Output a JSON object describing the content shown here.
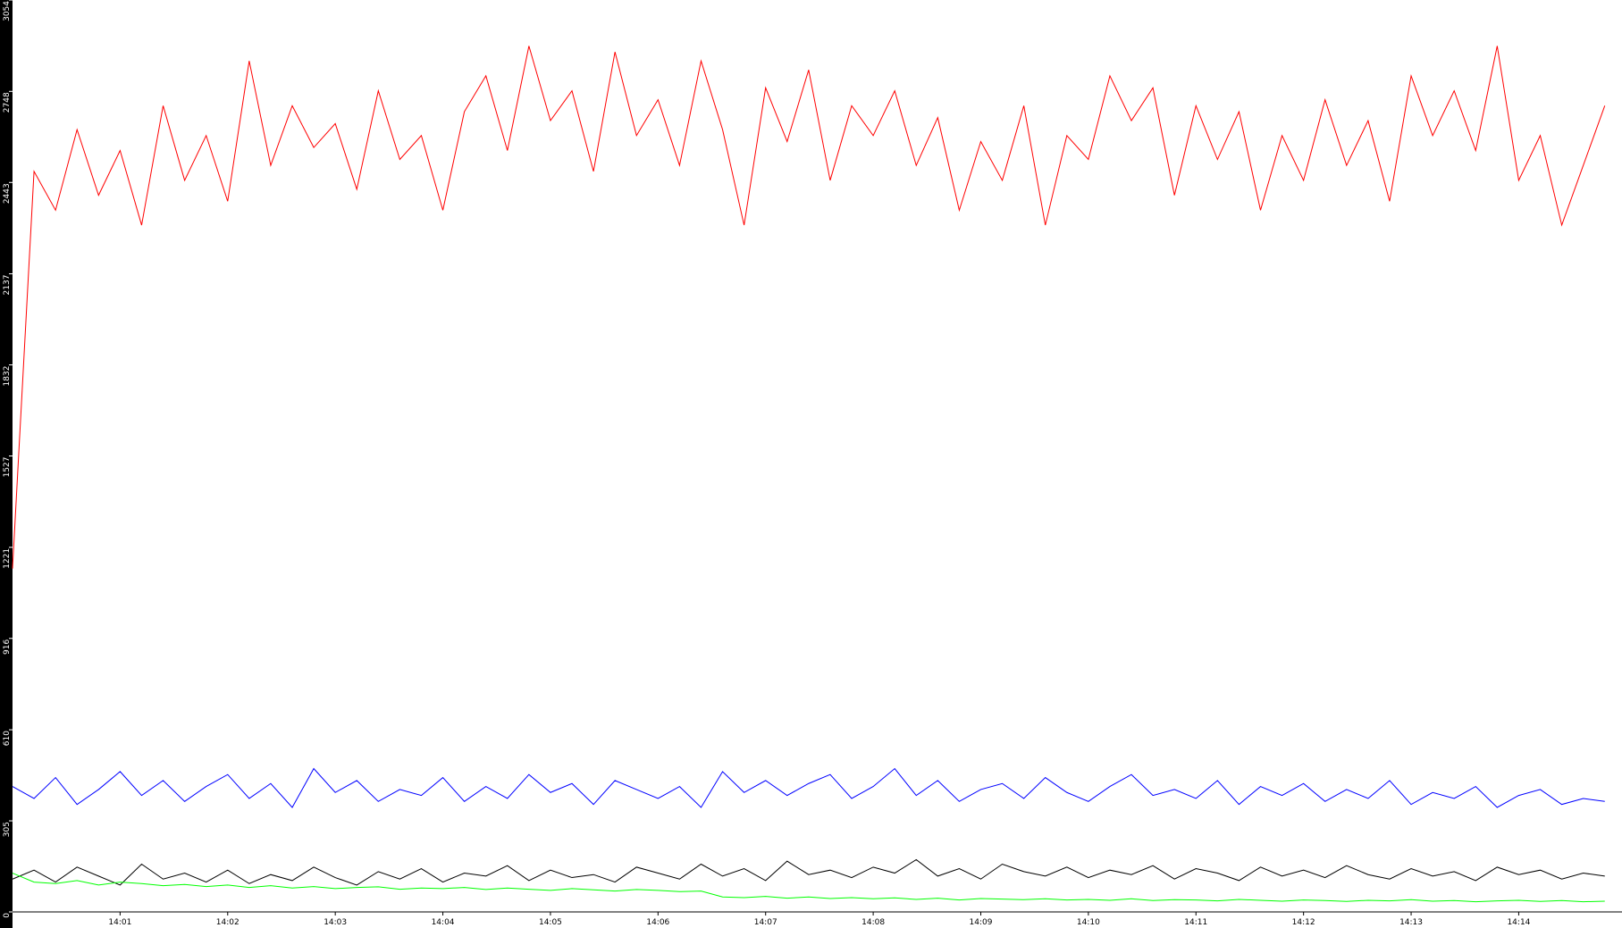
{
  "chart_data": {
    "type": "line",
    "x": [
      0,
      0.2,
      0.4,
      0.6,
      0.8,
      1,
      1.2,
      1.4,
      1.6,
      1.8,
      2,
      2.2,
      2.4,
      2.6,
      2.8,
      3,
      3.2,
      3.4,
      3.6,
      3.8,
      4,
      4.2,
      4.4,
      4.6,
      4.8,
      5,
      5.2,
      5.4,
      5.6,
      5.8,
      6,
      6.2,
      6.4,
      6.6,
      6.8,
      7,
      7.2,
      7.4,
      7.6,
      7.8,
      8,
      8.2,
      8.4,
      8.6,
      8.8,
      9,
      9.2,
      9.4,
      9.6,
      9.8,
      10,
      10.2,
      10.4,
      10.6,
      10.8,
      11,
      11.2,
      11.4,
      11.6,
      11.8,
      12,
      12.2,
      12.4,
      12.6,
      12.8,
      13,
      13.2,
      13.4,
      13.6,
      13.8,
      14,
      14.2,
      14.4,
      14.6,
      14.8
    ],
    "series": [
      {
        "color": "#ff0000",
        "values": [
          1150,
          2480,
          2350,
          2620,
          2400,
          2550,
          2300,
          2700,
          2450,
          2600,
          2380,
          2850,
          2500,
          2700,
          2560,
          2640,
          2420,
          2750,
          2520,
          2600,
          2350,
          2680,
          2800,
          2550,
          2900,
          2650,
          2750,
          2480,
          2880,
          2600,
          2720,
          2500,
          2850,
          2620,
          2300,
          2760,
          2580,
          2820,
          2450,
          2700,
          2600,
          2750,
          2500,
          2660,
          2350,
          2580,
          2450,
          2700,
          2300,
          2600,
          2520,
          2800,
          2650,
          2760,
          2400,
          2700,
          2520,
          2680,
          2350,
          2600,
          2450,
          2720,
          2500,
          2650,
          2380,
          2800,
          2600,
          2750,
          2550,
          2900,
          2450,
          2600,
          2300,
          2500,
          2700
        ]
      },
      {
        "color": "#0000ff",
        "values": [
          420,
          380,
          450,
          360,
          410,
          470,
          390,
          440,
          370,
          420,
          460,
          380,
          430,
          350,
          480,
          400,
          440,
          370,
          410,
          390,
          450,
          370,
          420,
          380,
          460,
          400,
          430,
          360,
          440,
          410,
          380,
          420,
          350,
          470,
          400,
          440,
          390,
          430,
          460,
          380,
          420,
          480,
          390,
          440,
          370,
          410,
          430,
          380,
          450,
          400,
          370,
          420,
          460,
          390,
          410,
          380,
          440,
          360,
          420,
          390,
          430,
          370,
          410,
          380,
          440,
          360,
          400,
          380,
          420,
          350,
          390,
          410,
          360,
          380,
          370
        ]
      },
      {
        "color": "#000000",
        "values": [
          110,
          140,
          100,
          150,
          120,
          90,
          160,
          110,
          130,
          100,
          140,
          95,
          125,
          105,
          150,
          115,
          90,
          135,
          110,
          145,
          100,
          130,
          120,
          155,
          105,
          140,
          115,
          125,
          100,
          150,
          130,
          110,
          160,
          120,
          145,
          105,
          170,
          125,
          140,
          115,
          150,
          130,
          175,
          120,
          145,
          110,
          160,
          135,
          120,
          150,
          115,
          140,
          125,
          155,
          110,
          145,
          130,
          105,
          150,
          120,
          140,
          115,
          155,
          125,
          110,
          145,
          120,
          135,
          105,
          150,
          125,
          140,
          110,
          130,
          120
        ]
      },
      {
        "color": "#00ff00",
        "values": [
          130,
          100,
          95,
          105,
          90,
          100,
          95,
          88,
          92,
          85,
          90,
          82,
          88,
          80,
          85,
          78,
          82,
          84,
          76,
          80,
          78,
          82,
          75,
          80,
          76,
          72,
          78,
          74,
          70,
          75,
          72,
          68,
          70,
          50,
          48,
          52,
          46,
          50,
          45,
          48,
          44,
          47,
          42,
          46,
          40,
          45,
          43,
          41,
          44,
          40,
          42,
          39,
          44,
          38,
          41,
          40,
          37,
          42,
          39,
          36,
          40,
          38,
          35,
          39,
          37,
          41,
          36,
          38,
          34,
          37,
          39,
          35,
          38,
          34,
          36
        ]
      }
    ],
    "xlim": [
      0,
      14.96
    ],
    "xticks": [
      {
        "value": 1,
        "label": "14:01"
      },
      {
        "value": 2,
        "label": "14:02"
      },
      {
        "value": 3,
        "label": "14:03"
      },
      {
        "value": 4,
        "label": "14:04"
      },
      {
        "value": 5,
        "label": "14:05"
      },
      {
        "value": 6,
        "label": "14:06"
      },
      {
        "value": 7,
        "label": "14:07"
      },
      {
        "value": 8,
        "label": "14:08"
      },
      {
        "value": 9,
        "label": "14:09"
      },
      {
        "value": 10,
        "label": "14:10"
      },
      {
        "value": 11,
        "label": "14:11"
      },
      {
        "value": 12,
        "label": "14:12"
      },
      {
        "value": 13,
        "label": "14:13"
      },
      {
        "value": 14,
        "label": "14:14"
      }
    ],
    "ylim": [
      0,
      3054
    ],
    "yticks": [
      0,
      305,
      610,
      916,
      1221,
      1527,
      1832,
      2137,
      2443,
      2748,
      3054
    ]
  }
}
